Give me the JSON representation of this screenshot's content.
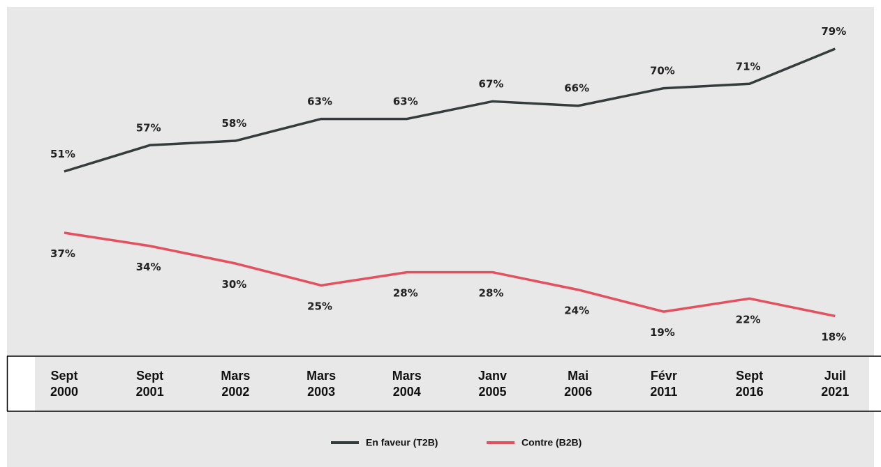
{
  "chart_data": {
    "type": "line",
    "categories": [
      "Sept 2000",
      "Sept 2001",
      "Mars 2002",
      "Mars 2003",
      "Mars 2004",
      "Janv 2005",
      "Mai 2006",
      "Févr 2011",
      "Sept 2016",
      "Juil 2021"
    ],
    "series": [
      {
        "name": "En faveur (T2B)",
        "color": "#343c3c",
        "values": [
          51,
          57,
          58,
          63,
          63,
          67,
          66,
          70,
          71,
          79
        ],
        "value_labels": [
          "51%",
          "57%",
          "58%",
          "63%",
          "63%",
          "67%",
          "66%",
          "70%",
          "71%",
          "79%"
        ]
      },
      {
        "name": "Contre (B2B)",
        "color": "#e4505d",
        "values": [
          37,
          34,
          30,
          25,
          28,
          28,
          24,
          19,
          22,
          18
        ],
        "value_labels": [
          "37%",
          "34%",
          "30%",
          "25%",
          "28%",
          "28%",
          "24%",
          "19%",
          "22%",
          "18%"
        ]
      }
    ],
    "legend": "bottom"
  }
}
